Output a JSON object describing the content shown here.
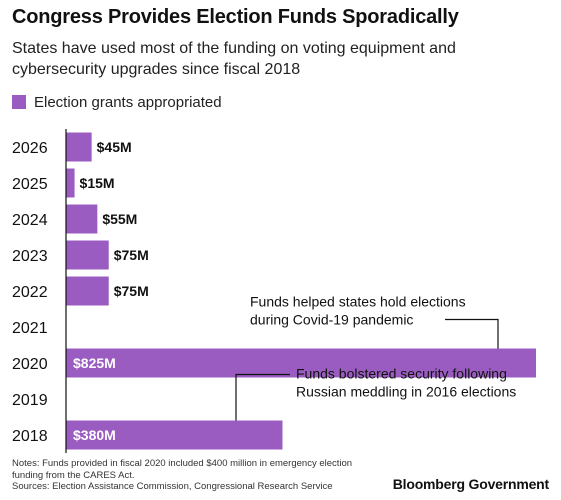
{
  "chart_data": {
    "type": "bar",
    "orientation": "horizontal",
    "title": "Congress Provides Election Funds Sporadically",
    "subtitle": "States have used most of the funding on voting equipment and cybersecurity upgrades since fiscal 2018",
    "categories": [
      "2026",
      "2025",
      "2024",
      "2023",
      "2022",
      "2021",
      "2020",
      "2019",
      "2018"
    ],
    "series": [
      {
        "name": "Election grants appropriated",
        "values": [
          45,
          15,
          55,
          75,
          75,
          null,
          825,
          null,
          380
        ],
        "labels": [
          "$45M",
          "$15M",
          "$55M",
          "$75M",
          "$75M",
          "",
          "$825M",
          "",
          "$380M"
        ]
      }
    ],
    "xlim": [
      0,
      825
    ],
    "grid": false,
    "legend_position": "top-left",
    "annotations": [
      {
        "category": "2020",
        "lines": [
          "Funds helped states hold elections",
          "during Covid-19 pandemic"
        ]
      },
      {
        "category": "2018",
        "lines": [
          "Funds bolstered security following",
          "Russian meddling in 2016 elections"
        ]
      }
    ],
    "notes": [
      "Notes: Funds provided in fiscal 2020 included $400 million in emergency election funding from the CARES Act.",
      "Sources: Election Assistance Commission, Congressional Research Service"
    ]
  },
  "brand": "Bloomberg Government",
  "colors": {
    "bar": "#9a5cc0",
    "label_inside": "#ffffff",
    "label_outside": "#111111",
    "axis": "#111111"
  }
}
